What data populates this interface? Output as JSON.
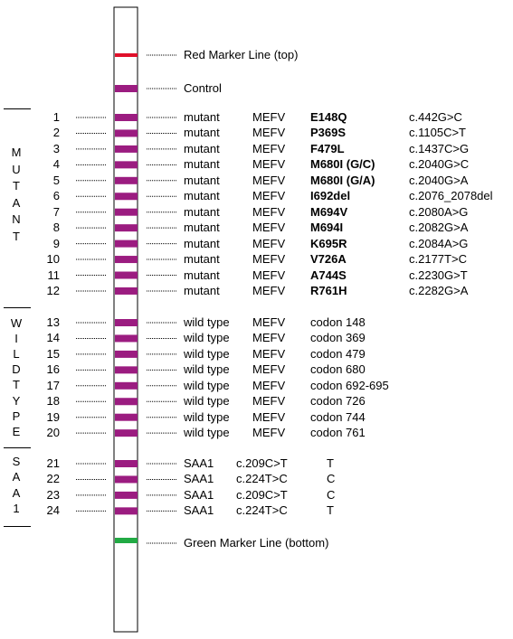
{
  "colors": {
    "band": "#9b1c80",
    "red_marker": "#e0102a",
    "green_marker": "#22aa44",
    "strip_border": "#000000"
  },
  "markers": {
    "top": {
      "label": "Red Marker Line (top)"
    },
    "control": {
      "label": "Control"
    },
    "bottom": {
      "label": "Green Marker Line (bottom)"
    }
  },
  "groups": [
    {
      "name": "mutant",
      "letters": [
        "M",
        "U",
        "T",
        "A",
        "N",
        "T"
      ]
    },
    {
      "name": "wildtype",
      "letters": [
        "W",
        "I",
        "L",
        "D",
        "T",
        "Y",
        "P",
        "E"
      ]
    },
    {
      "name": "saa1",
      "letters": [
        "S",
        "A",
        "A",
        "1"
      ]
    }
  ],
  "mutant_rows": [
    {
      "num": "1",
      "type": "mutant",
      "gene": "MEFV",
      "mutation": "E148Q",
      "cdna": "c.442G>C"
    },
    {
      "num": "2",
      "type": "mutant",
      "gene": "MEFV",
      "mutation": "P369S",
      "cdna": "c.1105C>T"
    },
    {
      "num": "3",
      "type": "mutant",
      "gene": "MEFV",
      "mutation": "F479L",
      "cdna": "c.1437C>G"
    },
    {
      "num": "4",
      "type": "mutant",
      "gene": "MEFV",
      "mutation": "M680I (G/C)",
      "cdna": "c.2040G>C"
    },
    {
      "num": "5",
      "type": "mutant",
      "gene": "MEFV",
      "mutation": "M680I (G/A)",
      "cdna": "c.2040G>A"
    },
    {
      "num": "6",
      "type": "mutant",
      "gene": "MEFV",
      "mutation": "I692del",
      "cdna": "c.2076_2078del"
    },
    {
      "num": "7",
      "type": "mutant",
      "gene": "MEFV",
      "mutation": "M694V",
      "cdna": "c.2080A>G"
    },
    {
      "num": "8",
      "type": "mutant",
      "gene": "MEFV",
      "mutation": "M694I",
      "cdna": "c.2082G>A"
    },
    {
      "num": "9",
      "type": "mutant",
      "gene": "MEFV",
      "mutation": "K695R",
      "cdna": "c.2084A>G"
    },
    {
      "num": "10",
      "type": "mutant",
      "gene": "MEFV",
      "mutation": "V726A",
      "cdna": "c.2177T>C"
    },
    {
      "num": "11",
      "type": "mutant",
      "gene": "MEFV",
      "mutation": "A744S",
      "cdna": "c.2230G>T"
    },
    {
      "num": "12",
      "type": "mutant",
      "gene": "MEFV",
      "mutation": "R761H",
      "cdna": "c.2282G>A"
    }
  ],
  "wildtype_rows": [
    {
      "num": "13",
      "type": "wild type",
      "gene": "MEFV",
      "codon": "codon 148"
    },
    {
      "num": "14",
      "type": "wild type",
      "gene": "MEFV",
      "codon": "codon 369"
    },
    {
      "num": "15",
      "type": "wild type",
      "gene": "MEFV",
      "codon": "codon 479"
    },
    {
      "num": "16",
      "type": "wild type",
      "gene": "MEFV",
      "codon": "codon 680"
    },
    {
      "num": "17",
      "type": "wild type",
      "gene": "MEFV",
      "codon": "codon 692-695"
    },
    {
      "num": "18",
      "type": "wild type",
      "gene": "MEFV",
      "codon": "codon 726"
    },
    {
      "num": "19",
      "type": "wild type",
      "gene": "MEFV",
      "codon": "codon 744"
    },
    {
      "num": "20",
      "type": "wild type",
      "gene": "MEFV",
      "codon": "codon 761"
    }
  ],
  "saa1_rows": [
    {
      "num": "21",
      "gene": "SAA1",
      "variant": "c.209C>T",
      "allele": "T"
    },
    {
      "num": "22",
      "gene": "SAA1",
      "variant": "c.224T>C",
      "allele": "C"
    },
    {
      "num": "23",
      "gene": "SAA1",
      "variant": "c.209C>T",
      "allele": "C"
    },
    {
      "num": "24",
      "gene": "SAA1",
      "variant": "c.224T>C",
      "allele": "T"
    }
  ]
}
